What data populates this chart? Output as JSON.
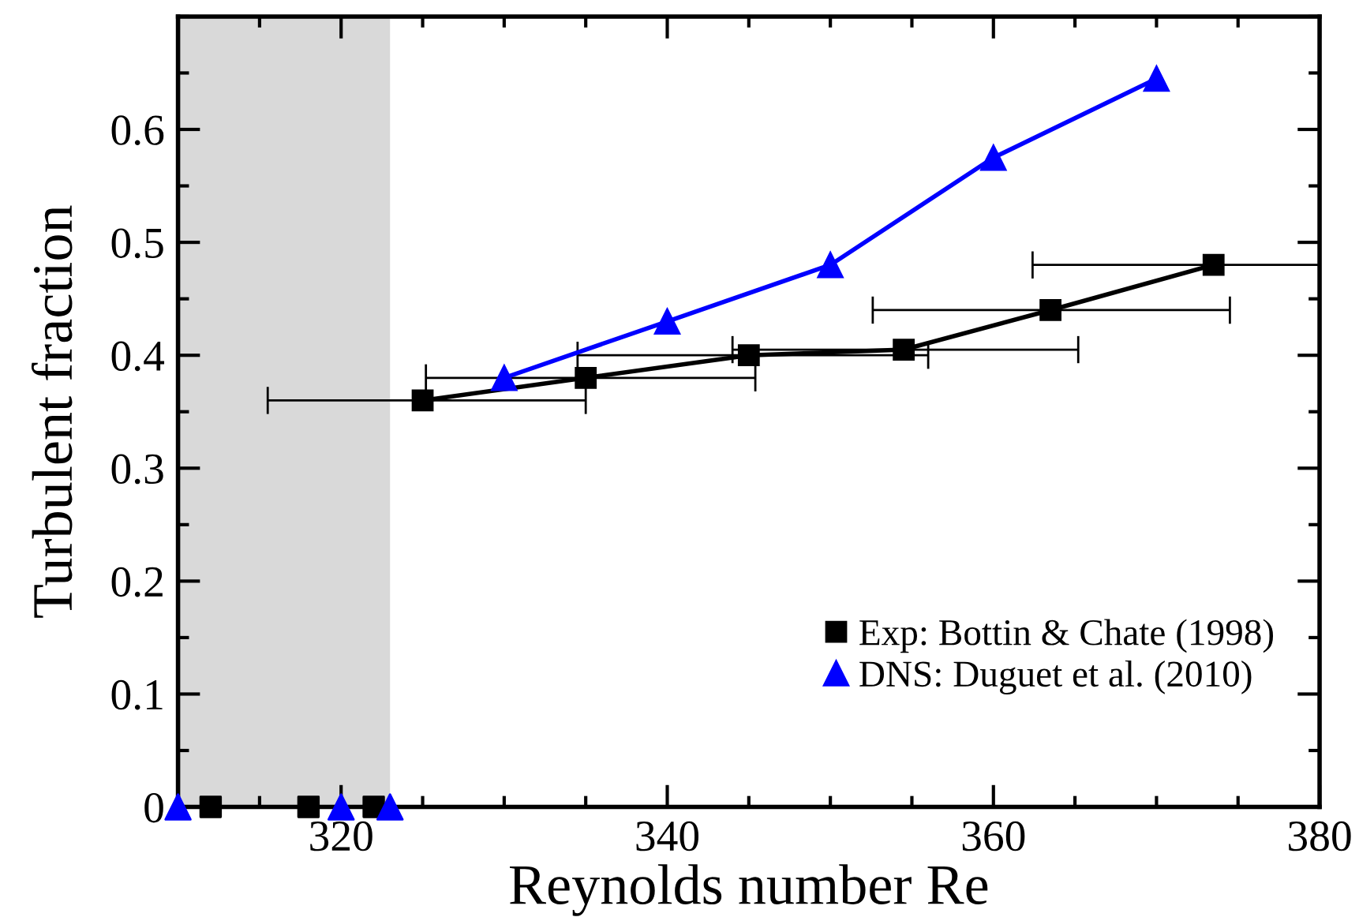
{
  "chart_data": {
    "type": "line",
    "xlabel": "Reynolds number Re",
    "ylabel": "Turbulent fraction",
    "series": [
      {
        "name": "Exp: Bottin & Chate (1998)",
        "color": "#000000",
        "marker": "square",
        "x": [
          325,
          335,
          345,
          354.5,
          363.5,
          373.5
        ],
        "values": [
          0.36,
          0.38,
          0.4,
          0.405,
          0.44,
          0.48
        ],
        "xerrors": [
          [
            315.5,
            335
          ],
          [
            325.2,
            345.4
          ],
          [
            334.5,
            356
          ],
          [
            344,
            365.2
          ],
          [
            352.6,
            374.5
          ],
          [
            362.4,
            380
          ]
        ]
      },
      {
        "name": "DNS: Duguet et al. (2010)",
        "color": "#0000ff",
        "marker": "triangle",
        "x": [
          330,
          340,
          350,
          360,
          370
        ],
        "values": [
          0.38,
          0.43,
          0.48,
          0.575,
          0.645
        ]
      },
      {
        "type": "scatter",
        "color": "#000000",
        "marker": "square",
        "x": [
          312,
          318,
          322
        ],
        "values": [
          0,
          0,
          0
        ]
      },
      {
        "type": "scatter",
        "color": "#0000ff",
        "marker": "triangle",
        "x": [
          310,
          320,
          323
        ],
        "values": [
          0,
          0,
          0
        ]
      }
    ],
    "xlim": [
      310,
      380
    ],
    "ylim": [
      0,
      0.7
    ],
    "xticks": [
      {
        "value": 310,
        "label": null
      },
      {
        "value": 315,
        "label": null
      },
      320,
      {
        "value": 325,
        "label": null
      },
      {
        "value": 330,
        "label": null
      },
      {
        "value": 335,
        "label": null
      },
      340,
      {
        "value": 345,
        "label": null
      },
      {
        "value": 350,
        "label": null
      },
      {
        "value": 355,
        "label": null
      },
      360,
      {
        "value": 365,
        "label": null
      },
      {
        "value": 370,
        "label": null
      },
      {
        "value": 375,
        "label": null
      },
      380
    ],
    "yticks": [
      0,
      {
        "value": 0.05,
        "label": null
      },
      0.1,
      {
        "value": 0.15,
        "label": null
      },
      0.2,
      {
        "value": 0.25,
        "label": null
      },
      0.3,
      {
        "value": 0.35,
        "label": null
      },
      0.4,
      {
        "value": 0.45,
        "label": null
      },
      0.5,
      {
        "value": 0.55,
        "label": null
      },
      0.6,
      {
        "value": 0.65,
        "label": null
      },
      {
        "value": 0.7,
        "label": null
      }
    ],
    "bands": [
      {
        "axis": "x",
        "from": 310,
        "to": 323,
        "color": "#d9d9d9"
      }
    ],
    "legend": "bottom right",
    "grid": false,
    "line_style": "solid"
  }
}
